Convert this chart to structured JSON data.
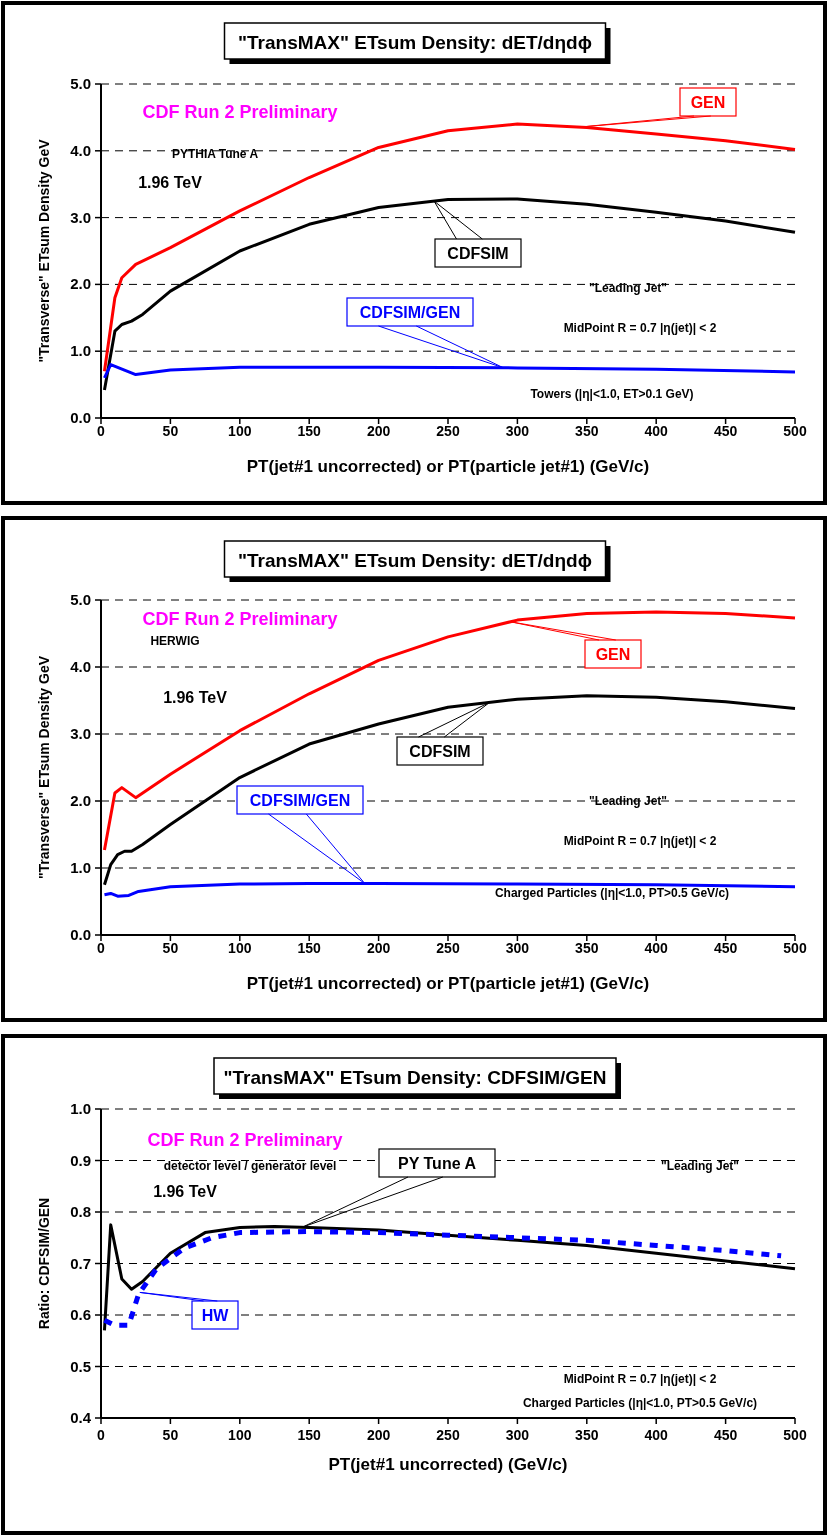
{
  "chart_data": [
    {
      "type": "line",
      "title": "\"TransMAX\" ETsum Density: dET/dηdϕ",
      "xlabel": "PT(jet#1 uncorrected) or PT(particle jet#1)  (GeV/c)",
      "ylabel": "\"Transverse\" ETsum Density GeV",
      "xlim": [
        0,
        500
      ],
      "xticks": [
        0,
        50,
        100,
        150,
        200,
        250,
        300,
        350,
        400,
        450,
        500
      ],
      "ylim": [
        0,
        5
      ],
      "yticks": [
        {
          "value": 0,
          "label": "0.0"
        },
        {
          "value": 1,
          "label": "1.0"
        },
        {
          "value": 2,
          "label": "2.0"
        },
        {
          "value": 3,
          "label": "3.0"
        },
        {
          "value": 4,
          "label": "4.0"
        },
        {
          "value": 5,
          "label": "5.0"
        }
      ],
      "grid": "y",
      "annotations": [
        "CDF Run 2 Preliminary",
        "PYTHIA Tune A",
        "1.96 TeV",
        "\"Leading Jet\"",
        "MidPoint R = 0.7 |η(jet)| < 2",
        "Towers (|η|<1.0, ET>0.1 GeV)"
      ],
      "series": [
        {
          "name": "GEN",
          "color": "#ff0000",
          "x": [
            2.5,
            10,
            15,
            25,
            50,
            100,
            150,
            200,
            250,
            300,
            350,
            400,
            450,
            500
          ],
          "values": [
            0.7,
            1.8,
            2.1,
            2.3,
            2.55,
            3.1,
            3.6,
            4.05,
            4.3,
            4.4,
            4.35,
            4.25,
            4.15,
            4.02
          ]
        },
        {
          "name": "CDFSIM",
          "color": "#000000",
          "x": [
            2.5,
            10,
            15,
            22,
            30,
            50,
            100,
            150,
            200,
            250,
            300,
            350,
            400,
            450,
            500
          ],
          "values": [
            0.42,
            1.3,
            1.4,
            1.45,
            1.55,
            1.9,
            2.5,
            2.9,
            3.15,
            3.27,
            3.28,
            3.2,
            3.08,
            2.95,
            2.78
          ]
        },
        {
          "name": "CDFSIM/GEN",
          "color": "#0000ff",
          "x": [
            2.5,
            7,
            25,
            50,
            100,
            200,
            300,
            400,
            500
          ],
          "values": [
            0.6,
            0.8,
            0.65,
            0.72,
            0.76,
            0.76,
            0.75,
            0.73,
            0.69
          ]
        }
      ]
    },
    {
      "type": "line",
      "title": "\"TransMAX\" ETsum Density: dET/dηdϕ",
      "xlabel": "PT(jet#1 uncorrected) or PT(particle jet#1)  (GeV/c)",
      "ylabel": "\"Transverse\" ETsum Density GeV",
      "xlim": [
        0,
        500
      ],
      "xticks": [
        0,
        50,
        100,
        150,
        200,
        250,
        300,
        350,
        400,
        450,
        500
      ],
      "ylim": [
        0,
        5
      ],
      "yticks": [
        {
          "value": 0,
          "label": "0.0"
        },
        {
          "value": 1,
          "label": "1.0"
        },
        {
          "value": 2,
          "label": "2.0"
        },
        {
          "value": 3,
          "label": "3.0"
        },
        {
          "value": 4,
          "label": "4.0"
        },
        {
          "value": 5,
          "label": "5.0"
        }
      ],
      "grid": "y",
      "annotations": [
        "CDF Run 2 Preliminary",
        "HERWIG",
        "1.96 TeV",
        "\"Leading Jet\"",
        "MidPoint R = 0.7 |η(jet)| < 2",
        "Charged Particles (|η|<1.0, PT>0.5 GeV/c)"
      ],
      "series": [
        {
          "name": "GEN",
          "color": "#ff0000",
          "x": [
            2.5,
            10,
            15,
            25,
            50,
            100,
            150,
            200,
            250,
            300,
            350,
            400,
            450,
            500
          ],
          "values": [
            1.27,
            2.12,
            2.2,
            2.05,
            2.4,
            3.05,
            3.6,
            4.1,
            4.45,
            4.7,
            4.8,
            4.82,
            4.8,
            4.73
          ]
        },
        {
          "name": "CDFSIM",
          "color": "#000000",
          "x": [
            2.5,
            7,
            12,
            17,
            22,
            30,
            50,
            100,
            150,
            200,
            250,
            300,
            350,
            400,
            450,
            500
          ],
          "values": [
            0.75,
            1.05,
            1.2,
            1.25,
            1.25,
            1.35,
            1.65,
            2.35,
            2.85,
            3.15,
            3.4,
            3.52,
            3.57,
            3.55,
            3.48,
            3.38
          ]
        },
        {
          "name": "CDFSIM/GEN",
          "color": "#0000ff",
          "x": [
            2.5,
            7,
            12,
            20,
            27,
            50,
            100,
            150,
            200,
            300,
            400,
            500
          ],
          "values": [
            0.6,
            0.62,
            0.58,
            0.59,
            0.65,
            0.72,
            0.76,
            0.77,
            0.77,
            0.76,
            0.75,
            0.72
          ]
        }
      ]
    },
    {
      "type": "line",
      "title": "\"TransMAX\" ETsum Density: CDFSIM/GEN",
      "xlabel": "PT(jet#1 uncorrected)  (GeV/c)",
      "ylabel": "Ratio: CDFSIM/GEN",
      "xlim": [
        0,
        500
      ],
      "xticks": [
        0,
        50,
        100,
        150,
        200,
        250,
        300,
        350,
        400,
        450,
        500
      ],
      "ylim": [
        0.4,
        1.0
      ],
      "yticks": [
        {
          "value": 0.4,
          "label": "0.4"
        },
        {
          "value": 0.5,
          "label": "0.5"
        },
        {
          "value": 0.6,
          "label": "0.6"
        },
        {
          "value": 0.7,
          "label": "0.7"
        },
        {
          "value": 0.8,
          "label": "0.8"
        },
        {
          "value": 0.9,
          "label": "0.9"
        },
        {
          "value": 1.0,
          "label": "1.0"
        }
      ],
      "grid": "y",
      "annotations": [
        "CDF Run 2 Preliminary",
        "detector level / generator level",
        "1.96 TeV",
        "\"Leading Jet\"",
        "MidPoint R = 0.7 |η(jet)| < 2",
        "Charged Particles (|η|<1.0, PT>0.5 GeV/c)"
      ],
      "series": [
        {
          "name": "PY Tune A",
          "color": "#000000",
          "line_style": "solid",
          "x": [
            2.5,
            7,
            15,
            22,
            30,
            50,
            75,
            100,
            125,
            150,
            200,
            250,
            300,
            350,
            400,
            450,
            500
          ],
          "values": [
            0.57,
            0.775,
            0.67,
            0.65,
            0.665,
            0.72,
            0.76,
            0.77,
            0.772,
            0.77,
            0.765,
            0.755,
            0.745,
            0.735,
            0.72,
            0.705,
            0.69
          ]
        },
        {
          "name": "HW",
          "color": "#0000ff",
          "line_style": "dotted",
          "x": [
            2.5,
            10,
            20,
            27,
            40,
            60,
            80,
            100,
            150,
            200,
            250,
            300,
            350,
            400,
            450,
            490
          ],
          "values": [
            0.59,
            0.58,
            0.58,
            0.64,
            0.69,
            0.73,
            0.75,
            0.76,
            0.762,
            0.76,
            0.755,
            0.75,
            0.745,
            0.735,
            0.725,
            0.715
          ]
        }
      ]
    }
  ]
}
